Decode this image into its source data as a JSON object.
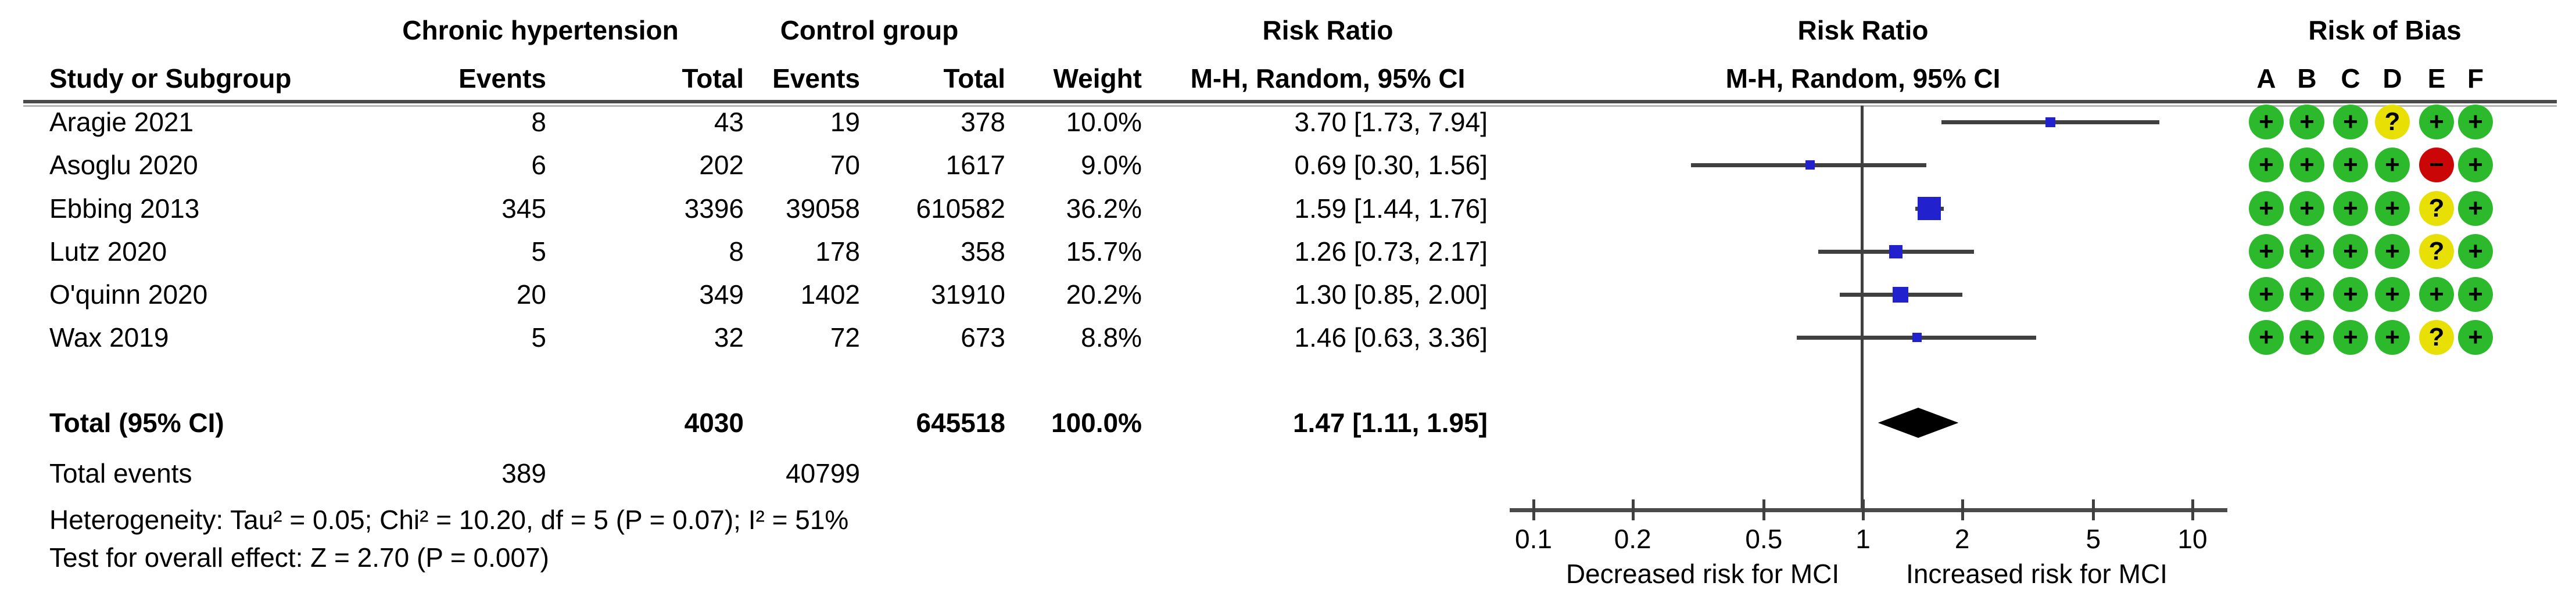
{
  "table": {
    "header": {
      "study_col": "Study or Subgroup",
      "group_exposed": "Chronic hypertension",
      "group_control": "Control group",
      "events": "Events",
      "total": "Total",
      "weight": "Weight",
      "rr_col_title": "Risk Ratio",
      "rr_col_sub": "M-H, Random, 95% CI",
      "plot_col_title": "Risk Ratio",
      "plot_col_sub": "M-H, Random, 95% CI",
      "rob_title": "Risk of Bias",
      "rob_letters": [
        "A",
        "B",
        "C",
        "D",
        "E",
        "F"
      ]
    },
    "total_row": {
      "label": "Total (95% CI)",
      "total_exposed": "4030",
      "total_control": "645518",
      "weight": "100.0%",
      "rr_text": "1.47 [1.11, 1.95]"
    },
    "total_events_row": {
      "label": "Total events",
      "events_exposed": "389",
      "events_control": "40799"
    },
    "heterogeneity": "Heterogeneity: Tau² = 0.05; Chi² = 10.20, df = 5 (P = 0.07); I² = 51%",
    "overall_effect": "Test for overall effect: Z = 2.70 (P = 0.007)"
  },
  "chart_data": {
    "type": "forest",
    "effect_measure": "Risk Ratio, M-H, Random, 95% CI",
    "x_scale": "log10",
    "xlim": [
      0.1,
      10
    ],
    "x_ticks": [
      "0.1",
      "0.2",
      "0.5",
      "1",
      "2",
      "5",
      "10"
    ],
    "axis_label_left": "Decreased risk for MCI",
    "axis_label_right": "Increased risk for MCI",
    "studies": [
      {
        "name": "Aragie 2021",
        "events_exposed": "8",
        "total_exposed": "43",
        "events_control": "19",
        "total_control": "378",
        "weight_pct": 10.0,
        "weight_text": "10.0%",
        "rr": 3.7,
        "ci_low": 1.73,
        "ci_high": 7.94,
        "rr_text": "3.70 [1.73, 7.94]",
        "risk_of_bias": [
          "+",
          "+",
          "+",
          "?",
          "+",
          "+"
        ]
      },
      {
        "name": "Asoglu 2020",
        "events_exposed": "6",
        "total_exposed": "202",
        "events_control": "70",
        "total_control": "1617",
        "weight_pct": 9.0,
        "weight_text": "9.0%",
        "rr": 0.69,
        "ci_low": 0.3,
        "ci_high": 1.56,
        "rr_text": "0.69 [0.30, 1.56]",
        "risk_of_bias": [
          "+",
          "+",
          "+",
          "+",
          "−",
          "+"
        ]
      },
      {
        "name": "Ebbing 2013",
        "events_exposed": "345",
        "total_exposed": "3396",
        "events_control": "39058",
        "total_control": "610582",
        "weight_pct": 36.2,
        "weight_text": "36.2%",
        "rr": 1.59,
        "ci_low": 1.44,
        "ci_high": 1.76,
        "rr_text": "1.59 [1.44, 1.76]",
        "risk_of_bias": [
          "+",
          "+",
          "+",
          "+",
          "?",
          "+"
        ]
      },
      {
        "name": "Lutz 2020",
        "events_exposed": "5",
        "total_exposed": "8",
        "events_control": "178",
        "total_control": "358",
        "weight_pct": 15.7,
        "weight_text": "15.7%",
        "rr": 1.26,
        "ci_low": 0.73,
        "ci_high": 2.17,
        "rr_text": "1.26 [0.73, 2.17]",
        "risk_of_bias": [
          "+",
          "+",
          "+",
          "+",
          "?",
          "+"
        ]
      },
      {
        "name": "O'quinn 2020",
        "events_exposed": "20",
        "total_exposed": "349",
        "events_control": "1402",
        "total_control": "31910",
        "weight_pct": 20.2,
        "weight_text": "20.2%",
        "rr": 1.3,
        "ci_low": 0.85,
        "ci_high": 2.0,
        "rr_text": "1.30 [0.85, 2.00]",
        "risk_of_bias": [
          "+",
          "+",
          "+",
          "+",
          "+",
          "+"
        ]
      },
      {
        "name": "Wax 2019",
        "events_exposed": "5",
        "total_exposed": "32",
        "events_control": "72",
        "total_control": "673",
        "weight_pct": 8.8,
        "weight_text": "8.8%",
        "rr": 1.46,
        "ci_low": 0.63,
        "ci_high": 3.36,
        "rr_text": "1.46 [0.63, 3.36]",
        "risk_of_bias": [
          "+",
          "+",
          "+",
          "+",
          "?",
          "+"
        ]
      }
    ],
    "total": {
      "rr": 1.47,
      "ci_low": 1.11,
      "ci_high": 1.95
    },
    "colors": {
      "marker_blue": "#2121cd",
      "line_gray": "#404040",
      "rob_plus": "#2cb92c",
      "rob_question": "#e8e004",
      "rob_minus": "#cb0606"
    }
  }
}
